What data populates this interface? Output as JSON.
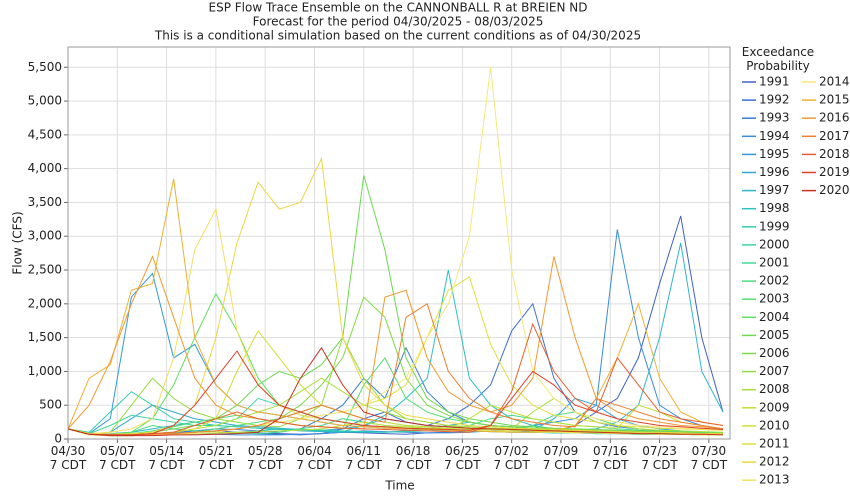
{
  "chart_data": {
    "type": "line",
    "title": "ESP Flow Trace Ensemble on the CANNONBALL R at BREIEN ND",
    "subtitle": "Forecast for the period 04/30/2025 - 08/03/2025",
    "subtitle2": "This is a conditional simulation based on the current conditions as of 04/30/2025",
    "x_label": "Time",
    "y_label": "Flow (CFS)",
    "legend_title": "Exceedance\nProbability",
    "grid": true,
    "xlim": [
      0,
      94
    ],
    "ylim": [
      0,
      5800
    ],
    "xticks": [
      {
        "value": 0,
        "label": "04/30\n7 CDT"
      },
      {
        "value": 7,
        "label": "05/07\n7 CDT"
      },
      {
        "value": 14,
        "label": "05/14\n7 CDT"
      },
      {
        "value": 21,
        "label": "05/21\n7 CDT"
      },
      {
        "value": 28,
        "label": "05/28\n7 CDT"
      },
      {
        "value": 35,
        "label": "06/04\n7 CDT"
      },
      {
        "value": 42,
        "label": "06/11\n7 CDT"
      },
      {
        "value": 49,
        "label": "06/18\n7 CDT"
      },
      {
        "value": 56,
        "label": "06/25\n7 CDT"
      },
      {
        "value": 63,
        "label": "07/02\n7 CDT"
      },
      {
        "value": 70,
        "label": "07/09\n7 CDT"
      },
      {
        "value": 77,
        "label": "07/16\n7 CDT"
      },
      {
        "value": 84,
        "label": "07/23\n7 CDT"
      },
      {
        "value": 91,
        "label": "07/30\n7 CDT"
      }
    ],
    "yticks": [
      0,
      500,
      {
        "value": 1000,
        "label": "1,000"
      },
      {
        "value": 1500,
        "label": "1,500"
      },
      {
        "value": 2000,
        "label": "2,000"
      },
      {
        "value": 2500,
        "label": "2,500"
      },
      {
        "value": 3000,
        "label": "3,000"
      },
      {
        "value": 3500,
        "label": "3,500"
      },
      {
        "value": 4000,
        "label": "4,000"
      },
      {
        "value": 4500,
        "label": "4,500"
      },
      {
        "value": 5000,
        "label": "5,000"
      },
      {
        "value": 5500,
        "label": "5,500"
      }
    ],
    "x": [
      0,
      3,
      6,
      9,
      12,
      15,
      18,
      21,
      24,
      27,
      30,
      33,
      36,
      39,
      42,
      45,
      48,
      51,
      54,
      57,
      60,
      63,
      66,
      69,
      72,
      75,
      78,
      81,
      84,
      87,
      90,
      93
    ],
    "series": [
      {
        "name": "1991",
        "color": "#4060c8",
        "values": [
          150,
          80,
          60,
          50,
          60,
          80,
          100,
          120,
          100,
          90,
          80,
          70,
          80,
          100,
          90,
          80,
          70,
          90,
          100,
          120,
          150,
          130,
          110,
          100,
          200,
          400,
          600,
          1200,
          2300,
          3300,
          1500,
          400
        ]
      },
      {
        "name": "1992",
        "color": "#3d6fd0",
        "values": [
          150,
          70,
          60,
          60,
          80,
          100,
          120,
          100,
          90,
          80,
          70,
          60,
          80,
          150,
          300,
          400,
          250,
          200,
          300,
          500,
          800,
          1600,
          2000,
          900,
          400,
          250,
          180,
          150,
          120,
          100,
          90,
          80
        ]
      },
      {
        "name": "1993",
        "color": "#3a7ed6",
        "values": [
          150,
          70,
          60,
          60,
          70,
          90,
          120,
          150,
          140,
          120,
          100,
          150,
          300,
          500,
          900,
          600,
          1350,
          700,
          400,
          250,
          200,
          180,
          150,
          130,
          120,
          110,
          100,
          90,
          80,
          70,
          60,
          60
        ]
      },
      {
        "name": "1994",
        "color": "#378cdc",
        "values": [
          150,
          70,
          50,
          50,
          60,
          70,
          80,
          70,
          60,
          60,
          60,
          70,
          80,
          100,
          120,
          110,
          100,
          90,
          90,
          100,
          120,
          150,
          200,
          250,
          300,
          500,
          3100,
          1500,
          500,
          300,
          200,
          150
        ]
      },
      {
        "name": "1995",
        "color": "#3499d8",
        "values": [
          150,
          80,
          300,
          2100,
          2450,
          1200,
          1400,
          800,
          500,
          400,
          350,
          300,
          250,
          200,
          180,
          160,
          150,
          140,
          130,
          120,
          110,
          100,
          100,
          90,
          90,
          80,
          80,
          70,
          70,
          70,
          60,
          60
        ]
      },
      {
        "name": "1996",
        "color": "#31a6d0",
        "values": [
          150,
          70,
          100,
          300,
          500,
          400,
          300,
          250,
          200,
          180,
          160,
          140,
          130,
          150,
          200,
          300,
          250,
          200,
          180,
          160,
          150,
          140,
          130,
          300,
          600,
          500,
          300,
          200,
          150,
          120,
          100,
          90
        ]
      },
      {
        "name": "1997",
        "color": "#2eb4c8",
        "values": [
          150,
          70,
          80,
          100,
          150,
          200,
          250,
          200,
          180,
          160,
          140,
          120,
          110,
          100,
          100,
          100,
          120,
          150,
          200,
          250,
          200,
          180,
          150,
          140,
          130,
          150,
          250,
          500,
          1500,
          2900,
          1000,
          400
        ]
      },
      {
        "name": "1998",
        "color": "#2bc2c0",
        "values": [
          150,
          60,
          50,
          50,
          60,
          70,
          80,
          90,
          100,
          120,
          150,
          130,
          120,
          110,
          200,
          350,
          600,
          900,
          2500,
          900,
          500,
          300,
          200,
          150,
          130,
          110,
          100,
          90,
          80,
          70,
          70,
          60
        ]
      },
      {
        "name": "1999",
        "color": "#33ccb0",
        "values": [
          150,
          100,
          400,
          700,
          500,
          300,
          250,
          200,
          180,
          160,
          150,
          140,
          130,
          120,
          110,
          100,
          110,
          120,
          130,
          120,
          110,
          100,
          100,
          110,
          120,
          110,
          100,
          90,
          90,
          80,
          80,
          70
        ]
      },
      {
        "name": "2000",
        "color": "#3dd4a0",
        "values": [
          150,
          80,
          200,
          350,
          300,
          250,
          200,
          200,
          300,
          600,
          500,
          400,
          300,
          250,
          200,
          180,
          160,
          150,
          140,
          130,
          120,
          110,
          100,
          90,
          90,
          80,
          80,
          70,
          70,
          70,
          60,
          60
        ]
      },
      {
        "name": "2001",
        "color": "#45d890",
        "values": [
          150,
          80,
          60,
          100,
          200,
          150,
          120,
          100,
          90,
          80,
          100,
          150,
          200,
          300,
          250,
          200,
          180,
          160,
          150,
          200,
          300,
          350,
          300,
          250,
          200,
          180,
          150,
          130,
          120,
          110,
          100,
          90
        ]
      },
      {
        "name": "2002",
        "color": "#4edc80",
        "values": [
          150,
          90,
          70,
          60,
          60,
          80,
          100,
          150,
          200,
          250,
          300,
          400,
          500,
          400,
          300,
          250,
          200,
          180,
          160,
          150,
          140,
          130,
          200,
          350,
          400,
          300,
          200,
          150,
          120,
          100,
          90,
          80
        ]
      },
      {
        "name": "2003",
        "color": "#56de70",
        "values": [
          150,
          70,
          60,
          80,
          120,
          180,
          250,
          300,
          350,
          300,
          250,
          200,
          180,
          160,
          800,
          1200,
          600,
          400,
          300,
          250,
          200,
          180,
          160,
          150,
          140,
          130,
          120,
          110,
          100,
          90,
          80,
          70
        ]
      },
      {
        "name": "2004",
        "color": "#5fe060",
        "values": [
          150,
          80,
          70,
          100,
          300,
          800,
          1500,
          2150,
          1600,
          900,
          500,
          350,
          300,
          250,
          200,
          180,
          160,
          150,
          140,
          130,
          120,
          110,
          100,
          100,
          90,
          90,
          80,
          80,
          70,
          70,
          60,
          60
        ]
      },
      {
        "name": "2005",
        "color": "#6ed850",
        "values": [
          150,
          80,
          70,
          80,
          100,
          150,
          200,
          300,
          500,
          800,
          1000,
          900,
          1100,
          1500,
          3900,
          2800,
          1200,
          600,
          400,
          300,
          250,
          200,
          180,
          160,
          150,
          140,
          130,
          120,
          110,
          100,
          90,
          80
        ]
      },
      {
        "name": "2006",
        "color": "#80d848",
        "values": [
          150,
          80,
          60,
          60,
          70,
          80,
          100,
          120,
          150,
          200,
          300,
          500,
          800,
          1200,
          2100,
          1800,
          900,
          500,
          350,
          250,
          200,
          180,
          160,
          150,
          140,
          130,
          120,
          110,
          100,
          90,
          80,
          70
        ]
      },
      {
        "name": "2007",
        "color": "#95dc40",
        "values": [
          150,
          70,
          100,
          500,
          900,
          600,
          400,
          300,
          250,
          200,
          180,
          300,
          500,
          1500,
          900,
          500,
          300,
          250,
          200,
          180,
          160,
          150,
          140,
          130,
          120,
          110,
          100,
          90,
          90,
          80,
          80,
          70
        ]
      },
      {
        "name": "2008",
        "color": "#aade38",
        "values": [
          150,
          80,
          70,
          70,
          80,
          100,
          150,
          200,
          300,
          400,
          500,
          700,
          900,
          700,
          500,
          400,
          300,
          250,
          200,
          180,
          160,
          150,
          400,
          600,
          400,
          250,
          200,
          150,
          130,
          120,
          110,
          100
        ]
      },
      {
        "name": "2009",
        "color": "#c0e030",
        "values": [
          150,
          60,
          50,
          50,
          60,
          70,
          80,
          90,
          100,
          110,
          120,
          130,
          150,
          200,
          250,
          200,
          180,
          160,
          150,
          300,
          500,
          400,
          300,
          250,
          200,
          180,
          160,
          500,
          400,
          250,
          200,
          150
        ]
      },
      {
        "name": "2010",
        "color": "#d2e030",
        "values": [
          150,
          70,
          60,
          60,
          80,
          100,
          150,
          300,
          1000,
          1600,
          1200,
          800,
          500,
          400,
          300,
          250,
          200,
          180,
          160,
          150,
          140,
          130,
          120,
          110,
          100,
          90,
          80,
          80,
          70,
          70,
          60,
          60
        ]
      },
      {
        "name": "2011",
        "color": "#e0e040",
        "values": [
          150,
          70,
          60,
          60,
          70,
          80,
          100,
          120,
          150,
          200,
          250,
          300,
          350,
          400,
          500,
          600,
          800,
          1500,
          2200,
          2400,
          1400,
          800,
          500,
          350,
          300,
          250,
          200,
          180,
          160,
          150,
          140,
          130
        ]
      },
      {
        "name": "2012",
        "color": "#ecd840",
        "values": [
          150,
          80,
          70,
          80,
          100,
          200,
          500,
          1500,
          2900,
          3800,
          3400,
          3500,
          4150,
          1500,
          800,
          500,
          350,
          300,
          250,
          200,
          180,
          160,
          150,
          140,
          130,
          120,
          110,
          100,
          100,
          90,
          80,
          80
        ]
      },
      {
        "name": "2013",
        "color": "#f2e060",
        "values": [
          150,
          80,
          100,
          150,
          300,
          1200,
          2800,
          3400,
          1600,
          800,
          500,
          350,
          300,
          250,
          200,
          180,
          160,
          150,
          140,
          130,
          120,
          110,
          100,
          100,
          90,
          90,
          80,
          80,
          70,
          70,
          60,
          60
        ]
      },
      {
        "name": "2014",
        "color": "#f5e878",
        "values": [
          150,
          60,
          50,
          50,
          60,
          70,
          80,
          100,
          150,
          200,
          250,
          300,
          350,
          400,
          500,
          700,
          900,
          1500,
          2000,
          3000,
          5500,
          2500,
          1000,
          600,
          400,
          300,
          250,
          200,
          180,
          160,
          150,
          140
        ]
      },
      {
        "name": "2015",
        "color": "#f0b030",
        "values": [
          150,
          900,
          1100,
          2200,
          2300,
          3850,
          1500,
          800,
          500,
          400,
          350,
          300,
          250,
          200,
          180,
          160,
          150,
          140,
          130,
          120,
          110,
          100,
          100,
          120,
          200,
          600,
          1200,
          2000,
          900,
          400,
          250,
          200
        ]
      },
      {
        "name": "2016",
        "color": "#f09a30",
        "values": [
          150,
          500,
          1150,
          2000,
          2700,
          1800,
          900,
          500,
          350,
          300,
          250,
          200,
          180,
          160,
          150,
          2100,
          2200,
          1200,
          700,
          500,
          400,
          500,
          900,
          2700,
          1500,
          600,
          400,
          300,
          250,
          200,
          180,
          150
        ]
      },
      {
        "name": "2017",
        "color": "#f07f30",
        "values": [
          150,
          70,
          60,
          60,
          70,
          80,
          100,
          120,
          150,
          200,
          300,
          400,
          500,
          400,
          300,
          250,
          1800,
          2000,
          1000,
          600,
          400,
          300,
          250,
          200,
          180,
          600,
          500,
          400,
          300,
          250,
          200,
          150
        ]
      },
      {
        "name": "2018",
        "color": "#e86030",
        "values": [
          150,
          70,
          60,
          60,
          80,
          100,
          200,
          300,
          400,
          300,
          250,
          200,
          180,
          160,
          150,
          140,
          130,
          120,
          110,
          100,
          200,
          700,
          1700,
          1000,
          600,
          400,
          1200,
          800,
          400,
          300,
          250,
          200
        ]
      },
      {
        "name": "2019",
        "color": "#e04028",
        "values": [
          150,
          70,
          60,
          60,
          80,
          200,
          500,
          900,
          1300,
          800,
          500,
          400,
          300,
          250,
          200,
          180,
          160,
          150,
          140,
          130,
          200,
          600,
          1000,
          800,
          500,
          400,
          300,
          250,
          200,
          180,
          160,
          140
        ]
      },
      {
        "name": "2020",
        "color": "#c83020",
        "values": [
          150,
          70,
          50,
          50,
          50,
          60,
          60,
          70,
          80,
          100,
          300,
          900,
          1350,
          800,
          400,
          300,
          250,
          200,
          180,
          160,
          150,
          140,
          130,
          120,
          110,
          100,
          90,
          80,
          80,
          70,
          70,
          60
        ]
      }
    ]
  }
}
